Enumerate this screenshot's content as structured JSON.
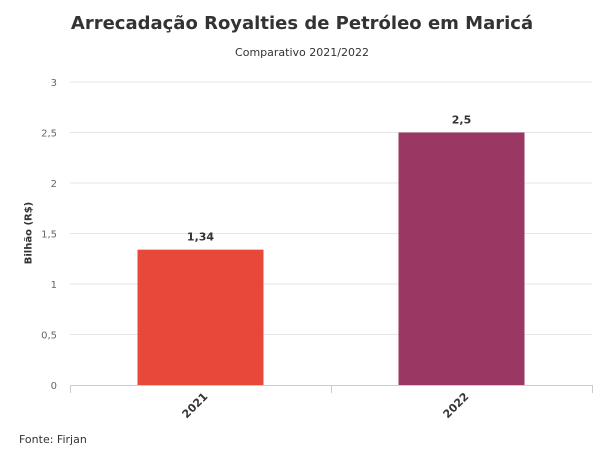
{
  "chart_data": {
    "type": "bar",
    "title": "Arrecadação Royalties de Petróleo em Maricá",
    "subtitle": "Comparativo 2021/2022",
    "xlabel": "",
    "ylabel": "Bilhão (R$)",
    "categories": [
      "2021",
      "2022"
    ],
    "values": [
      1.34,
      2.5
    ],
    "value_labels": [
      "1,34",
      "2,5"
    ],
    "bar_colors": [
      "#e8483a",
      "#9b3763"
    ],
    "ylim": [
      0,
      3
    ],
    "yticks": [
      0,
      0.5,
      1,
      1.5,
      2,
      2.5,
      3
    ],
    "ytick_labels": [
      "0",
      "0,5",
      "1",
      "1,5",
      "2",
      "2,5",
      "3"
    ],
    "grid": true,
    "legend": "none"
  },
  "source": "Fonte: Firjan"
}
